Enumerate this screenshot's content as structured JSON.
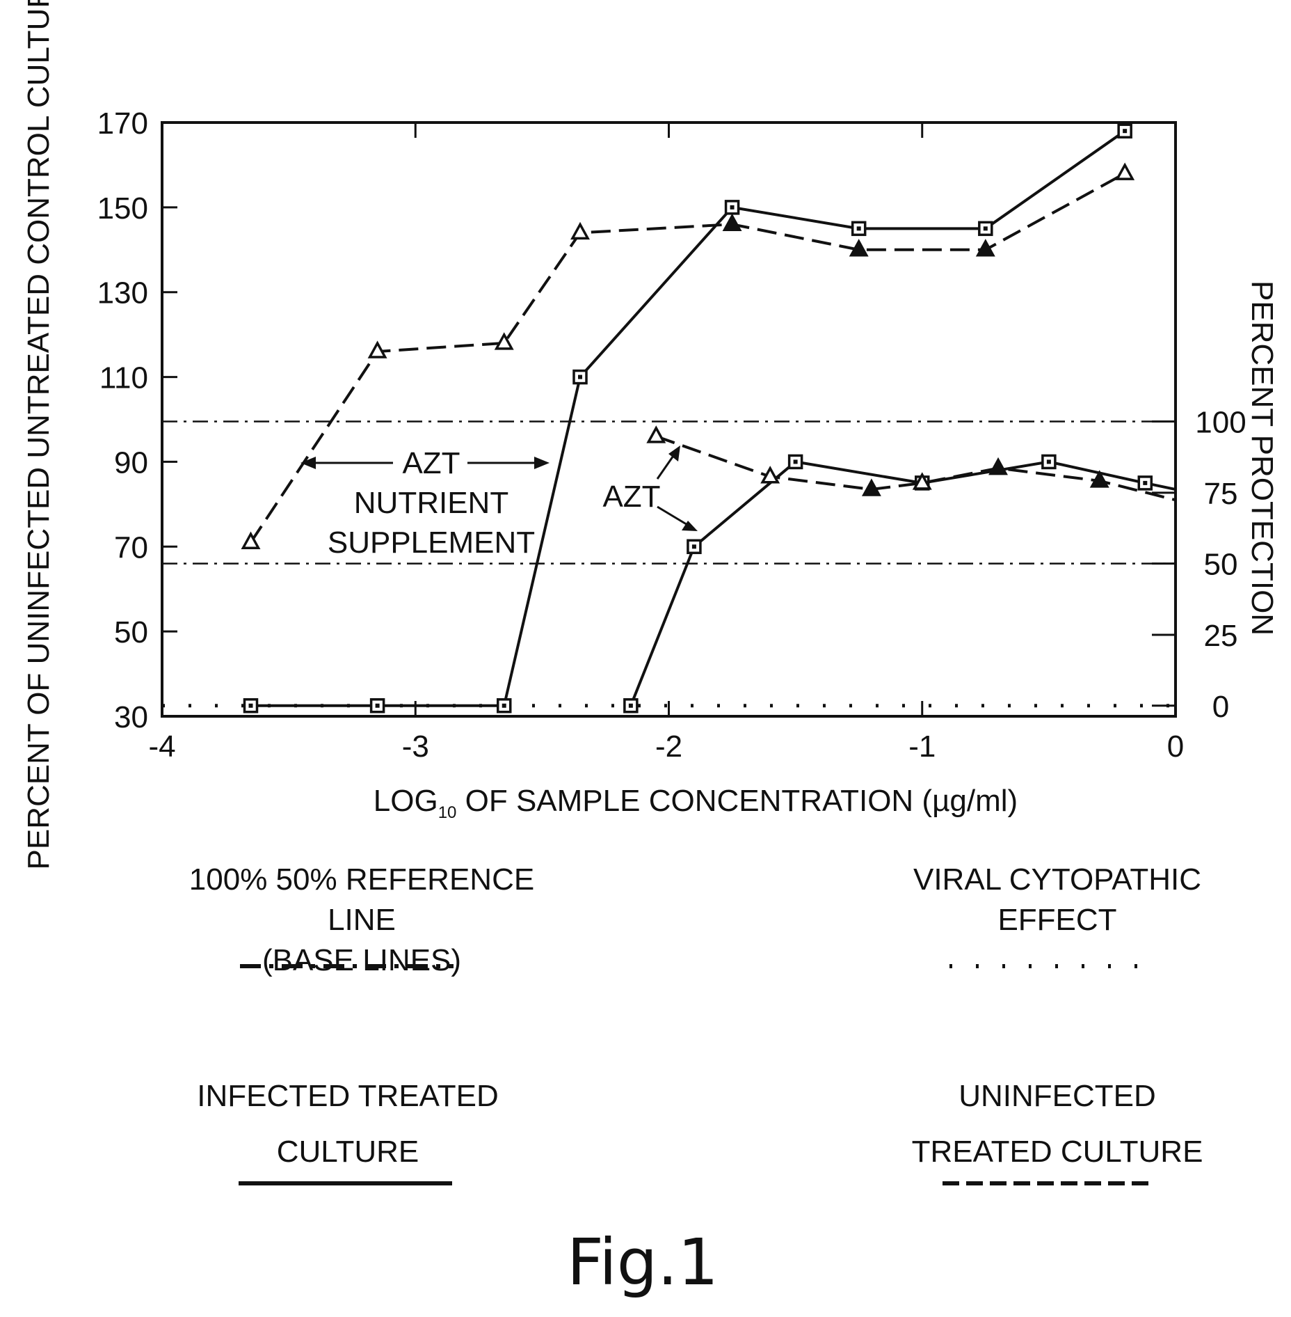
{
  "chart_data": {
    "type": "line",
    "x": {
      "label_prefix": "LOG",
      "label_sub": "10",
      "label_suffix": " OF SAMPLE CONCENTRATION (µg/ml)",
      "range": [
        -4,
        0
      ],
      "ticks": [
        -4,
        -3,
        -2,
        -1,
        0
      ]
    },
    "y_left": {
      "label": "PERCENT OF UNINFECTED  UNTREATED CONTROL CULTURE",
      "range": [
        30,
        170
      ],
      "ticks": [
        30,
        50,
        70,
        90,
        110,
        130,
        150,
        170
      ]
    },
    "y_right": {
      "label": "PERCENT PROTECTION",
      "ticks": [
        {
          "label": "100",
          "left_value": 99.5
        },
        {
          "label": "75",
          "left_value": 82.7
        },
        {
          "label": "50",
          "left_value": 66.0
        },
        {
          "label": "25",
          "left_value": 49.2
        },
        {
          "label": "0",
          "left_value": 32.5
        }
      ]
    },
    "reference_lines": [
      {
        "name": "100%",
        "y": 99.5,
        "style": "dash-dot"
      },
      {
        "name": "50%",
        "y": 66.0,
        "style": "dash-dot"
      },
      {
        "name": "viral cytopathic effect",
        "y": 32.5,
        "style": "dotted"
      }
    ],
    "series": [
      {
        "name": "NUTRIENT SUPPLEMENT infected treated",
        "style": "solid",
        "marker": "square",
        "points": [
          [
            -3.65,
            32.5
          ],
          [
            -3.15,
            32.5
          ],
          [
            -2.65,
            32.5
          ],
          [
            -2.35,
            110
          ],
          [
            -1.75,
            150
          ],
          [
            -1.25,
            145
          ],
          [
            -0.75,
            145
          ],
          [
            -0.2,
            168
          ]
        ]
      },
      {
        "name": "NUTRIENT SUPPLEMENT uninfected treated",
        "style": "dashed",
        "marker": "triangle-open",
        "points": [
          [
            -3.65,
            71
          ],
          [
            -3.15,
            116
          ],
          [
            -2.65,
            118
          ],
          [
            -2.35,
            144
          ],
          [
            -1.75,
            146
          ],
          [
            -1.25,
            140
          ],
          [
            -0.75,
            140
          ],
          [
            -0.2,
            158
          ]
        ],
        "filled_markers_at": [
          -1.75,
          -1.25,
          -0.75
        ]
      },
      {
        "name": "AZT infected treated",
        "style": "solid",
        "marker": "square",
        "points": [
          [
            -2.15,
            32.5
          ],
          [
            -1.9,
            70
          ],
          [
            -1.5,
            90
          ],
          [
            -1,
            85
          ],
          [
            -0.5,
            90
          ],
          [
            -0.12,
            85
          ],
          [
            0,
            83.5
          ]
        ]
      },
      {
        "name": "AZT uninfected treated",
        "style": "dashed",
        "marker": "triangle-open",
        "points": [
          [
            -2.05,
            96
          ],
          [
            -1.6,
            86.5
          ],
          [
            -1.2,
            83.5
          ],
          [
            -1,
            85
          ],
          [
            -0.7,
            88.5
          ],
          [
            -0.3,
            85.5
          ],
          [
            0,
            81
          ]
        ],
        "filled_markers_at": [
          -1.2,
          -0.7,
          -0.3
        ]
      }
    ],
    "annotations": {
      "azt_nutrient_line1": "AZT",
      "azt_nutrient_line2": "NUTRIENT",
      "azt_nutrient_line3": "SUPPLEMENT",
      "azt_lower": "AZT"
    }
  },
  "legend": {
    "ref_line1": "100% 50% REFERENCE LINE",
    "ref_line2": "(BASE LINES)",
    "viral_line1": "VIRAL CYTOPATHIC",
    "viral_line2": "EFFECT",
    "infected_line1": "INFECTED TREATED",
    "infected_line2": "CULTURE",
    "uninfected_line1": "UNINFECTED",
    "uninfected_line2": "TREATED CULTURE"
  },
  "figure_label": "Fig.1"
}
